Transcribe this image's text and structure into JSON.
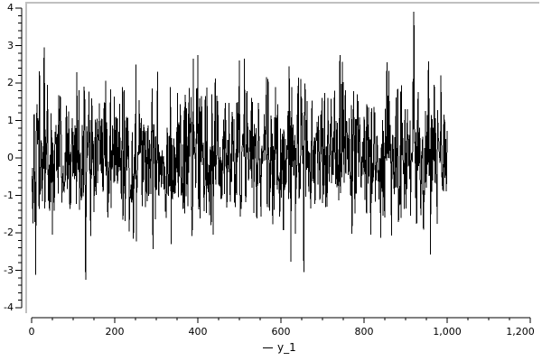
{
  "window": {
    "background": "#ffffff",
    "frame_color": "#c0c0c0"
  },
  "chart_data": {
    "type": "line",
    "title": "",
    "xlabel": "",
    "ylabel": "",
    "xlim": [
      0,
      1200
    ],
    "ylim": [
      -4,
      4
    ],
    "grid": false,
    "x_major_ticks": [
      0,
      200,
      400,
      600,
      800,
      1000,
      1200
    ],
    "x_tick_labels": [
      "0",
      "200",
      "400",
      "600",
      "800",
      "1,000",
      "1,200"
    ],
    "x_minor_step": 50,
    "y_major_ticks": [
      -4,
      -3,
      -2,
      -1,
      0,
      1,
      2,
      3,
      4
    ],
    "y_tick_labels": [
      "-4",
      "-3",
      "-2",
      "-1",
      "0",
      "1",
      "2",
      "3",
      "4"
    ],
    "y_minor_step": 0.2,
    "axis_color": "#000000",
    "legend": {
      "position": "bottom-center",
      "entries": [
        {
          "label": "y_1",
          "color": "#000000",
          "marker": "line"
        }
      ]
    },
    "series": [
      {
        "name": "y_1",
        "color": "#000000",
        "signal": "gaussian-white-noise",
        "x_start": 1,
        "x_end": 1000,
        "n": 1000,
        "mean": 0,
        "std": 0.95,
        "seed": 42,
        "clamp": [
          -3.3,
          3.95
        ],
        "observed_min": -3.25,
        "observed_max": 3.9,
        "spikes": [
          [
            30,
            2.95
          ],
          [
            130,
            -3.25
          ],
          [
            303,
            2.3
          ],
          [
            500,
            2.6
          ],
          [
            512,
            2.65
          ],
          [
            620,
            2.45
          ],
          [
            655,
            -3.05
          ],
          [
            742,
            2.75
          ],
          [
            855,
            2.55
          ],
          [
            920,
            3.9
          ],
          [
            985,
            2.2
          ]
        ]
      }
    ]
  }
}
